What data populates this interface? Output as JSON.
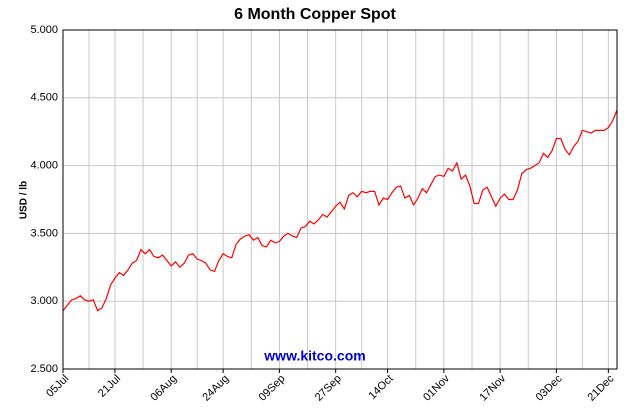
{
  "chart_data": {
    "type": "line",
    "title": "6 Month Copper Spot",
    "y_label": "USD / lb",
    "watermark": "www.kitco.com",
    "categories": [
      "05Jul",
      null,
      null,
      null,
      null,
      null,
      null,
      null,
      null,
      null,
      null,
      null,
      "21Jul",
      null,
      null,
      null,
      null,
      null,
      null,
      null,
      null,
      null,
      null,
      null,
      null,
      "06Aug",
      null,
      null,
      null,
      null,
      null,
      null,
      null,
      null,
      null,
      null,
      null,
      "24Aug",
      null,
      null,
      null,
      null,
      null,
      null,
      null,
      null,
      null,
      null,
      null,
      null,
      "09Sep",
      null,
      null,
      null,
      null,
      null,
      null,
      null,
      null,
      null,
      null,
      null,
      null,
      "27Sep",
      null,
      null,
      null,
      null,
      null,
      null,
      null,
      null,
      null,
      null,
      null,
      "14Oct",
      null,
      null,
      null,
      null,
      null,
      null,
      null,
      null,
      null,
      null,
      null,
      null,
      "01Nov",
      null,
      null,
      null,
      null,
      null,
      null,
      null,
      null,
      null,
      null,
      null,
      null,
      "17Nov",
      null,
      null,
      null,
      null,
      null,
      null,
      null,
      null,
      null,
      null,
      null,
      null,
      "03Dec",
      null,
      null,
      null,
      null,
      null,
      null,
      null,
      null,
      null,
      null,
      null,
      "21Dec",
      null,
      null
    ],
    "series": [
      {
        "color": "#ff0000",
        "values": [
          2.93,
          2.97,
          3.01,
          3.02,
          3.04,
          3.01,
          3.0,
          3.01,
          2.93,
          2.95,
          3.02,
          3.12,
          3.17,
          3.21,
          3.19,
          3.23,
          3.28,
          3.3,
          3.38,
          3.35,
          3.38,
          3.33,
          3.32,
          3.34,
          3.3,
          3.26,
          3.29,
          3.25,
          3.28,
          3.34,
          3.35,
          3.31,
          3.3,
          3.28,
          3.23,
          3.22,
          3.3,
          3.35,
          3.33,
          3.32,
          3.42,
          3.46,
          3.48,
          3.49,
          3.45,
          3.47,
          3.41,
          3.4,
          3.45,
          3.43,
          3.44,
          3.48,
          3.5,
          3.48,
          3.47,
          3.54,
          3.55,
          3.59,
          3.57,
          3.6,
          3.64,
          3.62,
          3.66,
          3.7,
          3.73,
          3.68,
          3.78,
          3.8,
          3.77,
          3.81,
          3.8,
          3.81,
          3.81,
          3.71,
          3.76,
          3.75,
          3.8,
          3.84,
          3.85,
          3.76,
          3.78,
          3.71,
          3.76,
          3.83,
          3.8,
          3.86,
          3.92,
          3.93,
          3.92,
          3.98,
          3.96,
          4.02,
          3.9,
          3.93,
          3.85,
          3.72,
          3.72,
          3.82,
          3.84,
          3.77,
          3.7,
          3.76,
          3.79,
          3.75,
          3.75,
          3.82,
          3.94,
          3.97,
          3.98,
          4.0,
          4.02,
          4.09,
          4.06,
          4.11,
          4.2,
          4.2,
          4.12,
          4.08,
          4.14,
          4.18,
          4.26,
          4.25,
          4.24,
          4.26,
          4.26,
          4.26,
          4.28,
          4.33,
          4.41
        ]
      }
    ],
    "ylim": [
      2.5,
      5.0
    ],
    "yticks": [
      {
        "value": 2.5,
        "label": "2.500"
      },
      {
        "value": 3.0,
        "label": "3.000"
      },
      {
        "value": 3.5,
        "label": "3.500"
      },
      {
        "value": 4.0,
        "label": "4.000"
      },
      {
        "value": 4.5,
        "label": "4.500"
      },
      {
        "value": 5.0,
        "label": "5.000"
      }
    ],
    "grid": true
  }
}
